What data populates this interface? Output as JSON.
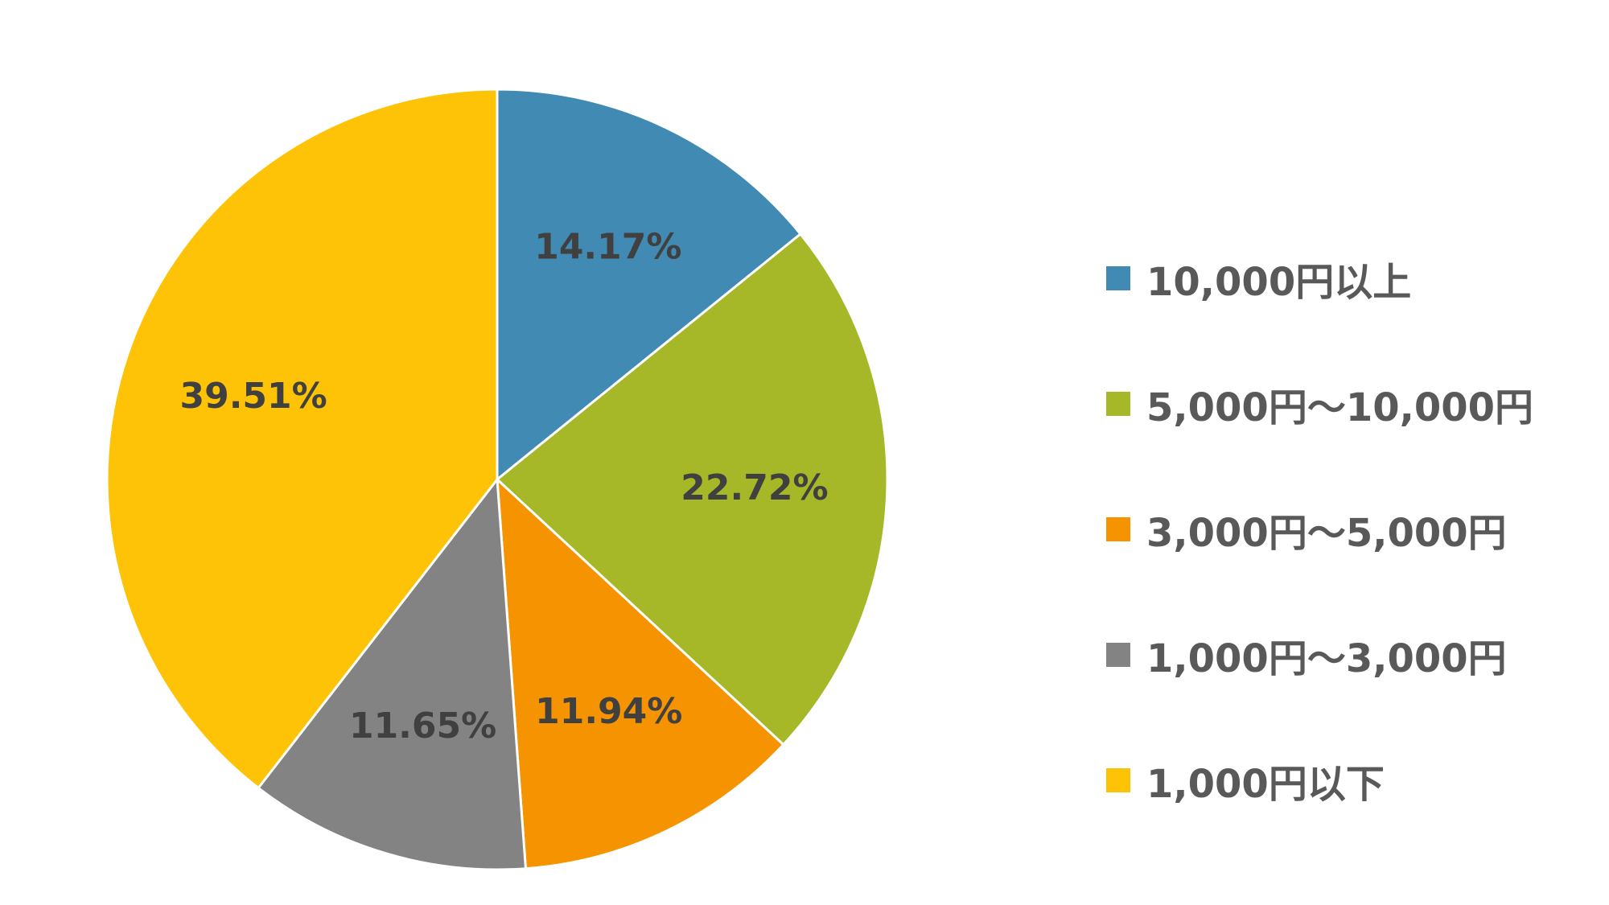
{
  "chart_data": {
    "type": "pie",
    "title": "",
    "legend_position": "right",
    "categories": [
      "10,000円以上",
      "5,000円〜10,000円",
      "3,000円〜5,000円",
      "1,000円〜3,000円",
      "1,000円以下"
    ],
    "values": [
      14.17,
      22.72,
      11.94,
      11.65,
      39.51
    ],
    "labels": [
      "14.17%",
      "22.72%",
      "11.94%",
      "11.65%",
      "39.51%"
    ],
    "colors": [
      "#418AB3",
      "#A6B727",
      "#F59300",
      "#838383",
      "#FEC306"
    ]
  }
}
